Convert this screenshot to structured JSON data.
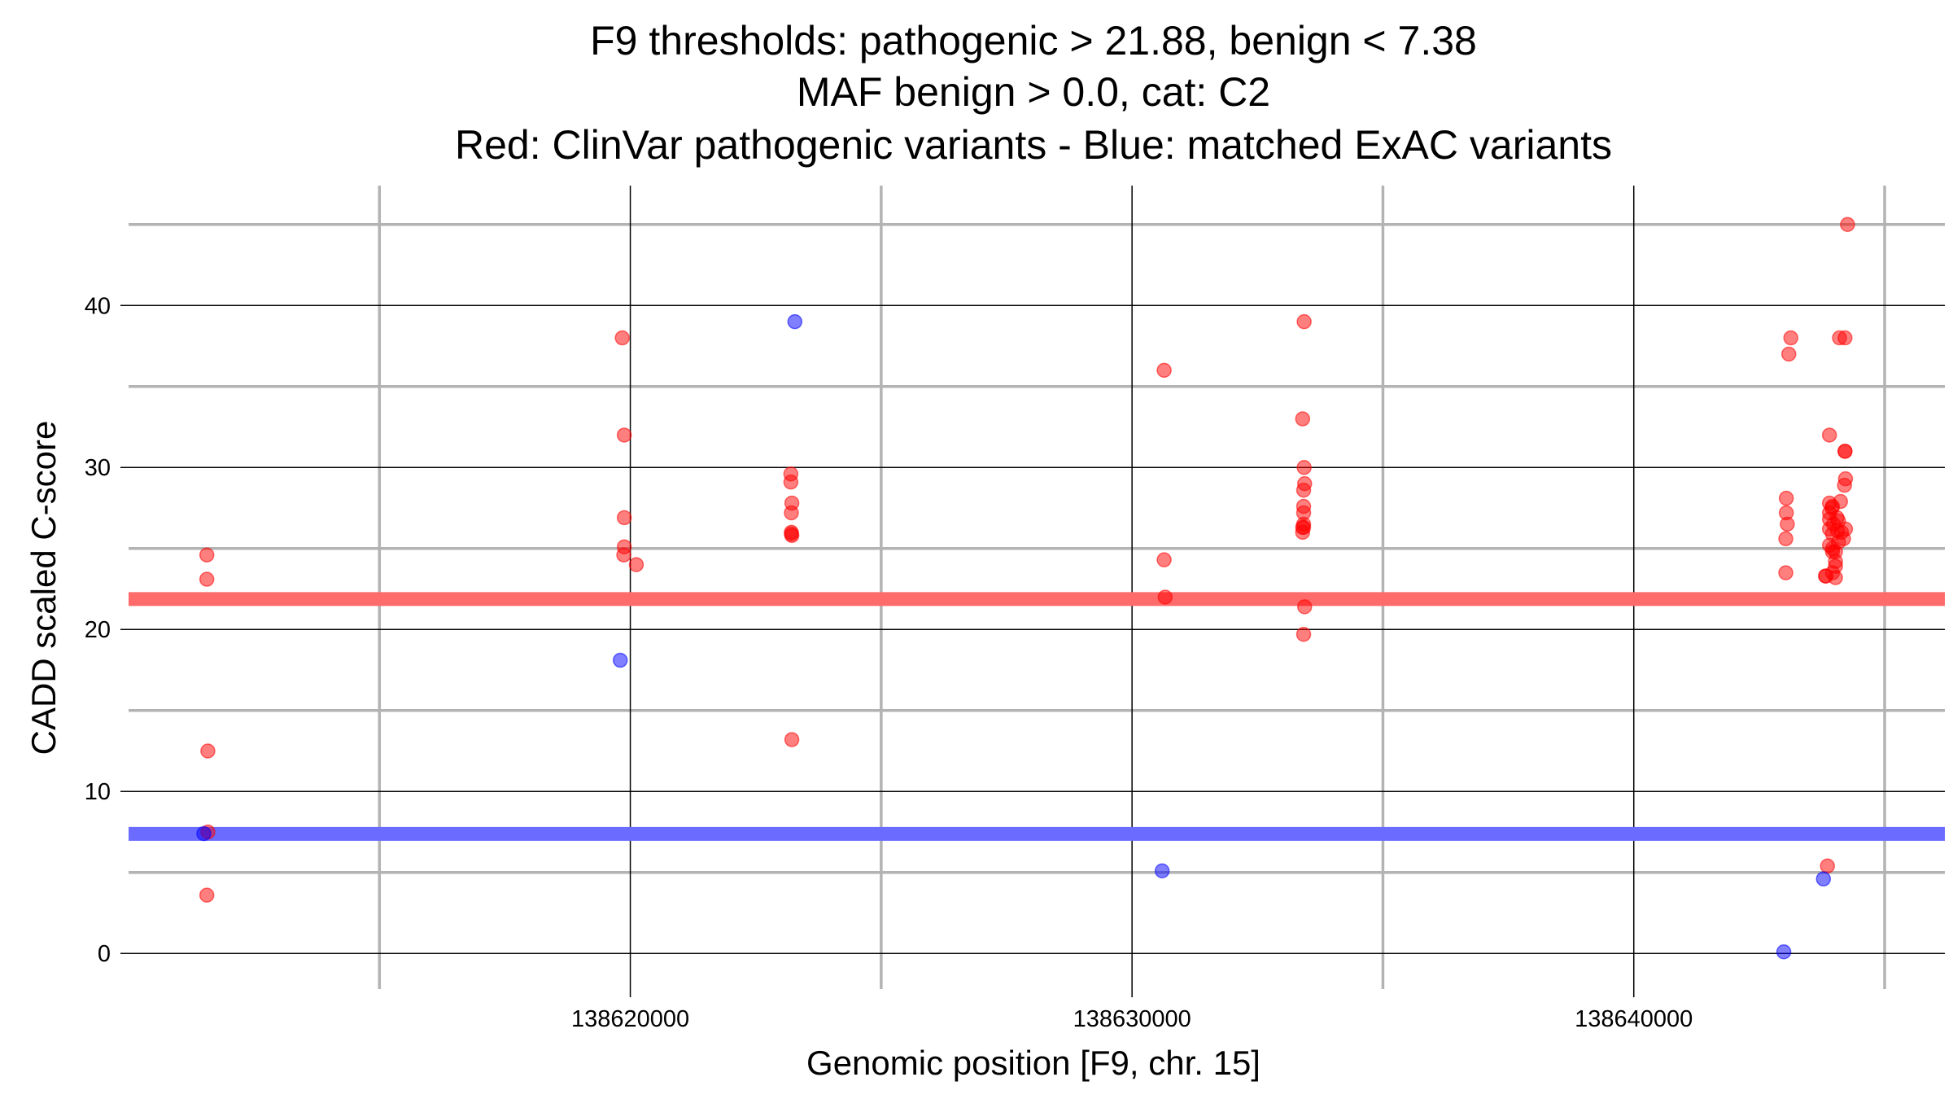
{
  "chart_data": {
    "type": "scatter",
    "title_lines": [
      "F9 thresholds: pathogenic > 21.88, benign < 7.38",
      "MAF benign > 0.0, cat: C2",
      "Red: ClinVar pathogenic variants - Blue: matched ExAC variants"
    ],
    "xlabel": "Genomic position [F9, chr. 15]",
    "ylabel": "CADD scaled C-score",
    "xlim": [
      138610000,
      138646200
    ],
    "ylim": [
      -2.2,
      47.4
    ],
    "x_major_ticks": [
      138620000,
      138630000,
      138640000
    ],
    "x_minor_ticks": [
      138615000,
      138625000,
      138635000,
      138645000
    ],
    "y_major_ticks": [
      0,
      10,
      20,
      30,
      40
    ],
    "y_minor_ticks": [
      5,
      15,
      25,
      35,
      45
    ],
    "x_tick_labels": [
      "138620000",
      "138630000",
      "138640000"
    ],
    "y_tick_labels": [
      "0",
      "10",
      "20",
      "30",
      "40"
    ],
    "grid": true,
    "thresholds": [
      {
        "label": "pathogenic",
        "value": 21.88,
        "color": "#ff6b6b"
      },
      {
        "label": "benign",
        "value": 7.38,
        "color": "#6b6bff"
      }
    ],
    "series": [
      {
        "color": "#ff0000",
        "x": [
          138611560,
          138611560,
          138611580,
          138611580,
          138611560,
          138619840,
          138619880,
          138619880,
          138619870,
          138619880,
          138620120,
          138623200,
          138623200,
          138623220,
          138623210,
          138623210,
          138623220,
          138623220,
          138623210,
          138630640,
          138630640,
          138630660,
          138633400,
          138633400,
          138633420,
          138633420,
          138633420,
          138633420,
          138633440,
          138633430,
          138633420,
          138633430,
          138633440,
          138633420,
          138633400,
          138643030,
          138643030,
          138643040,
          138643040,
          138643060,
          138643090,
          138643130,
          138643820,
          138643830,
          138643900,
          138643900,
          138643900,
          138643950,
          138643900,
          138643900,
          138643960,
          138643960,
          138644080,
          138644020,
          138644020,
          138644020,
          138644050,
          138644080,
          138644120,
          138644140,
          138644180,
          138644200,
          138644220,
          138644210,
          138644210,
          138644210,
          138644260,
          138644220,
          138643960,
          138643860,
          138643900,
          138643980,
          138644100,
          138643960,
          138644020,
          138643960,
          138644060
        ],
        "y": [
          24.6,
          23.1,
          12.5,
          7.5,
          3.6,
          38.0,
          32.0,
          26.9,
          24.6,
          25.1,
          24.0,
          29.6,
          29.1,
          27.8,
          27.2,
          26.0,
          25.8,
          13.2,
          25.9,
          36.0,
          24.3,
          22.0,
          33.0,
          26.0,
          26.5,
          27.2,
          27.6,
          28.6,
          29.0,
          30.0,
          26.3,
          39.0,
          21.4,
          19.7,
          26.3,
          25.6,
          23.5,
          27.2,
          28.1,
          26.5,
          37.0,
          38.0,
          23.3,
          23.3,
          27.8,
          26.8,
          27.2,
          27.5,
          26.2,
          25.2,
          25.0,
          24.8,
          25.4,
          23.9,
          24.2,
          23.2,
          26.9,
          26.7,
          27.9,
          26.0,
          25.6,
          28.9,
          29.3,
          31.0,
          31.0,
          38.0,
          45.0,
          26.2,
          27.6,
          5.4,
          32.0,
          26.5,
          38.0,
          25.9,
          24.8,
          23.5,
          26.1
        ]
      },
      {
        "color": "#0000ff",
        "x": [
          138611500,
          138619800,
          138623280,
          138630600,
          138642990,
          138643780
        ],
        "y": [
          7.4,
          18.1,
          39.0,
          5.1,
          0.1,
          4.6
        ]
      }
    ]
  }
}
